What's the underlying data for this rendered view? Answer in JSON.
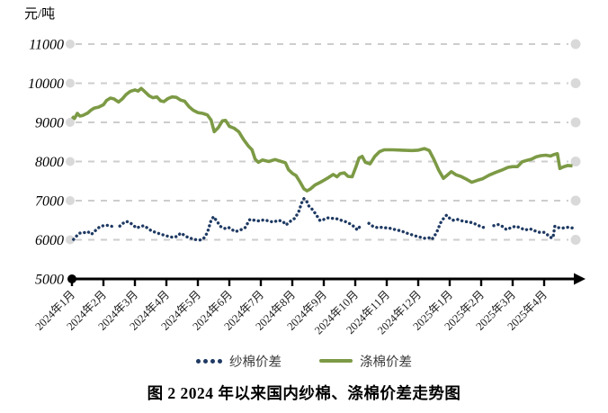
{
  "chart_data": {
    "type": "line",
    "title": "图 2 2024 年以来国内纱棉、涤棉价差走势图",
    "ylabel": "元/吨",
    "ylim": [
      5000,
      11000
    ],
    "yticks": [
      5000,
      6000,
      7000,
      8000,
      9000,
      10000,
      11000
    ],
    "x_tick_labels": [
      "2024年1月",
      "2024年2月",
      "2024年3月",
      "2024年4月",
      "2024年5月",
      "2024年6月",
      "2024年7月",
      "2024年8月",
      "2024年9月",
      "2024年10月",
      "2024年11月",
      "2024年12月",
      "2025年1月",
      "2025年2月",
      "2025年3月",
      "2025年4月"
    ],
    "x_unit": "month (index 0 = 2024年1月 tick)",
    "grid": "horizontal dashed gray lines with gray dot at each end",
    "axis_style": "solid black x-axis at 5000 with right arrow, black origin dot, downward ticks",
    "legend_position": "bottom center",
    "colors": {
      "yarn_spread": "#1F3A63",
      "polyester_spread": "#7C9A45",
      "gridline": "#CDCDCD",
      "grid_end_dot": "#D9D9D9",
      "axis": "#000000"
    },
    "series": [
      {
        "name": "纱棉价差",
        "type": "dotted",
        "color": "#1F3A63",
        "segments": [
          [
            [
              0.05,
              6010
            ],
            [
              0.15,
              6100
            ],
            [
              0.25,
              6170
            ],
            [
              0.38,
              6180
            ],
            [
              0.5,
              6210
            ],
            [
              0.62,
              6140
            ],
            [
              0.75,
              6240
            ],
            [
              0.88,
              6330
            ],
            [
              1.0,
              6360
            ],
            [
              1.12,
              6370
            ],
            [
              1.25,
              6350
            ],
            [
              1.33,
              6320
            ]
          ],
          [
            [
              1.52,
              6350
            ],
            [
              1.62,
              6420
            ],
            [
              1.72,
              6470
            ],
            [
              1.82,
              6450
            ],
            [
              1.92,
              6390
            ],
            [
              2.05,
              6300
            ],
            [
              2.15,
              6330
            ],
            [
              2.28,
              6360
            ],
            [
              2.4,
              6300
            ],
            [
              2.52,
              6230
            ],
            [
              2.65,
              6190
            ],
            [
              2.8,
              6150
            ],
            [
              2.95,
              6110
            ],
            [
              3.1,
              6080
            ],
            [
              3.22,
              6060
            ],
            [
              3.35,
              6090
            ],
            [
              3.45,
              6170
            ],
            [
              3.57,
              6120
            ],
            [
              3.7,
              6050
            ],
            [
              3.82,
              6030
            ],
            [
              3.95,
              6000
            ],
            [
              4.05,
              5990
            ],
            [
              4.18,
              6030
            ],
            [
              4.3,
              6180
            ],
            [
              4.42,
              6500
            ],
            [
              4.5,
              6590
            ],
            [
              4.6,
              6480
            ],
            [
              4.72,
              6340
            ],
            [
              4.85,
              6290
            ],
            [
              4.97,
              6320
            ],
            [
              5.08,
              6260
            ],
            [
              5.2,
              6210
            ],
            [
              5.35,
              6250
            ],
            [
              5.5,
              6310
            ],
            [
              5.65,
              6520
            ],
            [
              5.8,
              6500
            ],
            [
              5.95,
              6480
            ],
            [
              6.1,
              6510
            ],
            [
              6.25,
              6480
            ],
            [
              6.4,
              6450
            ],
            [
              6.55,
              6500
            ],
            [
              6.7,
              6470
            ],
            [
              6.8,
              6380
            ],
            [
              6.95,
              6480
            ],
            [
              7.08,
              6550
            ],
            [
              7.2,
              6710
            ],
            [
              7.3,
              6950
            ],
            [
              7.37,
              7050
            ],
            [
              7.45,
              6990
            ],
            [
              7.52,
              6870
            ],
            [
              7.62,
              6790
            ],
            [
              7.75,
              6650
            ],
            [
              7.88,
              6490
            ],
            [
              8.0,
              6520
            ],
            [
              8.12,
              6560
            ],
            [
              8.25,
              6550
            ],
            [
              8.4,
              6540
            ],
            [
              8.55,
              6500
            ],
            [
              8.7,
              6460
            ],
            [
              8.85,
              6400
            ],
            [
              8.97,
              6330
            ],
            [
              9.07,
              6250
            ],
            [
              9.18,
              6380
            ]
          ],
          [
            [
              9.43,
              6420
            ],
            [
              9.55,
              6350
            ],
            [
              9.7,
              6310
            ],
            [
              9.85,
              6320
            ],
            [
              10.0,
              6300
            ],
            [
              10.15,
              6290
            ],
            [
              10.3,
              6250
            ],
            [
              10.45,
              6230
            ],
            [
              10.6,
              6180
            ],
            [
              10.75,
              6140
            ],
            [
              10.9,
              6100
            ],
            [
              11.05,
              6070
            ],
            [
              11.2,
              6040
            ],
            [
              11.35,
              6050
            ],
            [
              11.43,
              6010
            ],
            [
              11.52,
              6100
            ],
            [
              11.62,
              6250
            ],
            [
              11.7,
              6420
            ],
            [
              11.8,
              6540
            ],
            [
              11.9,
              6630
            ],
            [
              12.0,
              6550
            ],
            [
              12.1,
              6500
            ],
            [
              12.25,
              6520
            ],
            [
              12.4,
              6480
            ],
            [
              12.55,
              6460
            ],
            [
              12.7,
              6440
            ],
            [
              12.85,
              6390
            ],
            [
              13.0,
              6330
            ],
            [
              13.15,
              6300
            ]
          ],
          [
            [
              13.4,
              6360
            ],
            [
              13.55,
              6390
            ],
            [
              13.7,
              6330
            ],
            [
              13.8,
              6260
            ],
            [
              13.95,
              6310
            ],
            [
              14.1,
              6350
            ],
            [
              14.25,
              6300
            ],
            [
              14.4,
              6250
            ],
            [
              14.55,
              6280
            ],
            [
              14.7,
              6230
            ],
            [
              14.85,
              6190
            ],
            [
              15.0,
              6190
            ],
            [
              15.1,
              6130
            ],
            [
              15.2,
              6060
            ],
            [
              15.28,
              6050
            ],
            [
              15.34,
              6350
            ],
            [
              15.45,
              6310
            ],
            [
              15.6,
              6300
            ],
            [
              15.75,
              6320
            ],
            [
              15.9,
              6300
            ]
          ]
        ]
      },
      {
        "name": "涤棉价差",
        "type": "solid",
        "color": "#7C9A45",
        "segments": [
          [
            [
              0.0,
              9150
            ],
            [
              0.08,
              9100
            ],
            [
              0.17,
              9230
            ],
            [
              0.25,
              9160
            ],
            [
              0.35,
              9180
            ],
            [
              0.5,
              9240
            ],
            [
              0.6,
              9310
            ],
            [
              0.7,
              9360
            ],
            [
              0.85,
              9390
            ],
            [
              1.0,
              9450
            ],
            [
              1.1,
              9560
            ],
            [
              1.22,
              9620
            ],
            [
              1.33,
              9600
            ],
            [
              1.48,
              9520
            ],
            [
              1.6,
              9600
            ],
            [
              1.72,
              9710
            ],
            [
              1.85,
              9790
            ],
            [
              2.0,
              9830
            ],
            [
              2.1,
              9800
            ],
            [
              2.2,
              9870
            ],
            [
              2.32,
              9780
            ],
            [
              2.45,
              9680
            ],
            [
              2.57,
              9630
            ],
            [
              2.7,
              9650
            ],
            [
              2.82,
              9550
            ],
            [
              2.92,
              9530
            ],
            [
              3.05,
              9610
            ],
            [
              3.18,
              9650
            ],
            [
              3.32,
              9640
            ],
            [
              3.45,
              9570
            ],
            [
              3.58,
              9540
            ],
            [
              3.72,
              9400
            ],
            [
              3.85,
              9310
            ],
            [
              4.0,
              9250
            ],
            [
              4.15,
              9230
            ],
            [
              4.3,
              9190
            ],
            [
              4.42,
              9060
            ],
            [
              4.52,
              8760
            ],
            [
              4.65,
              8870
            ],
            [
              4.78,
              9040
            ],
            [
              4.88,
              9050
            ],
            [
              5.0,
              8900
            ],
            [
              5.15,
              8850
            ],
            [
              5.3,
              8760
            ],
            [
              5.45,
              8560
            ],
            [
              5.6,
              8400
            ],
            [
              5.72,
              8300
            ],
            [
              5.82,
              8060
            ],
            [
              5.92,
              7980
            ],
            [
              6.05,
              8040
            ],
            [
              6.25,
              8000
            ],
            [
              6.45,
              8050
            ],
            [
              6.65,
              8000
            ],
            [
              6.78,
              7970
            ],
            [
              6.88,
              7790
            ],
            [
              7.0,
              7700
            ],
            [
              7.12,
              7640
            ],
            [
              7.25,
              7470
            ],
            [
              7.37,
              7300
            ],
            [
              7.47,
              7250
            ],
            [
              7.58,
              7300
            ],
            [
              7.72,
              7400
            ],
            [
              7.87,
              7460
            ],
            [
              8.0,
              7520
            ],
            [
              8.15,
              7590
            ],
            [
              8.3,
              7670
            ],
            [
              8.42,
              7610
            ],
            [
              8.52,
              7690
            ],
            [
              8.65,
              7710
            ],
            [
              8.77,
              7620
            ],
            [
              8.9,
              7610
            ],
            [
              9.02,
              7860
            ],
            [
              9.12,
              8090
            ],
            [
              9.22,
              8130
            ],
            [
              9.32,
              7980
            ],
            [
              9.47,
              7940
            ],
            [
              9.62,
              8130
            ],
            [
              9.77,
              8250
            ],
            [
              9.92,
              8300
            ],
            [
              10.2,
              8300
            ],
            [
              10.5,
              8290
            ],
            [
              10.8,
              8280
            ],
            [
              11.0,
              8290
            ],
            [
              11.2,
              8330
            ],
            [
              11.35,
              8280
            ],
            [
              11.5,
              8050
            ],
            [
              11.65,
              7780
            ],
            [
              11.8,
              7570
            ],
            [
              11.92,
              7650
            ],
            [
              12.05,
              7740
            ],
            [
              12.2,
              7660
            ],
            [
              12.35,
              7620
            ],
            [
              12.5,
              7560
            ],
            [
              12.7,
              7470
            ],
            [
              12.88,
              7520
            ],
            [
              13.05,
              7560
            ],
            [
              13.25,
              7650
            ],
            [
              13.45,
              7720
            ],
            [
              13.65,
              7780
            ],
            [
              13.85,
              7850
            ],
            [
              14.0,
              7870
            ],
            [
              14.15,
              7870
            ],
            [
              14.3,
              7990
            ],
            [
              14.45,
              8030
            ],
            [
              14.6,
              8060
            ],
            [
              14.75,
              8120
            ],
            [
              14.9,
              8150
            ],
            [
              15.05,
              8160
            ],
            [
              15.2,
              8140
            ],
            [
              15.32,
              8180
            ],
            [
              15.42,
              8200
            ],
            [
              15.5,
              7820
            ],
            [
              15.6,
              7860
            ],
            [
              15.75,
              7900
            ],
            [
              15.9,
              7890
            ]
          ]
        ]
      }
    ]
  }
}
